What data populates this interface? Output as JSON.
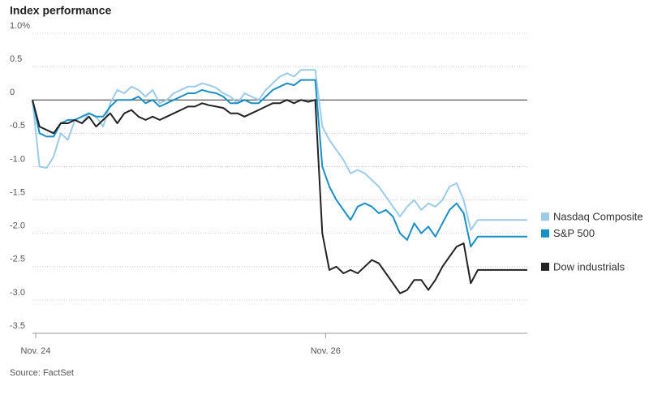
{
  "chart_data": {
    "type": "line",
    "title": "Index performance",
    "source": "Source: FactSet",
    "categories": [
      "Nov. 24",
      null,
      null,
      null,
      null,
      null,
      null,
      null,
      null,
      null,
      null,
      null,
      null,
      null,
      null,
      null,
      null,
      null,
      null,
      null,
      null,
      null,
      null,
      null,
      null,
      null,
      null,
      null,
      null,
      null,
      null,
      null,
      null,
      null,
      null,
      null,
      null,
      null,
      null,
      null,
      null,
      "Nov. 26",
      null,
      null,
      null,
      null,
      null,
      null,
      null,
      null,
      null,
      null,
      null,
      null,
      null,
      null,
      null,
      null,
      null,
      null,
      null,
      null,
      null,
      null,
      null,
      null,
      null,
      null,
      null,
      null,
      null
    ],
    "series": [
      {
        "name": "Nasdaq Composite",
        "color": "#9ccbe8",
        "values": [
          0,
          -1.0,
          -1.02,
          -0.85,
          -0.5,
          -0.6,
          -0.3,
          -0.35,
          -0.2,
          -0.25,
          -0.4,
          -0.05,
          0.15,
          0.1,
          0.2,
          0.15,
          0.05,
          0.15,
          -0.05,
          0,
          0.1,
          0.15,
          0.2,
          0.2,
          0.25,
          0.22,
          0.18,
          0.1,
          0.05,
          -0.05,
          0.1,
          0.05,
          0,
          0.15,
          0.25,
          0.35,
          0.4,
          0.35,
          0.45,
          0.45,
          0.45,
          -0.4,
          -0.6,
          -0.75,
          -0.9,
          -1.1,
          -1.05,
          -1.1,
          -1.2,
          -1.3,
          -1.45,
          -1.6,
          -1.75,
          -1.6,
          -1.5,
          -1.65,
          -1.55,
          -1.6,
          -1.5,
          -1.3,
          -1.25,
          -1.5,
          -1.95,
          -1.8,
          -1.8,
          -1.8,
          -1.8,
          -1.8,
          -1.8,
          -1.8,
          -1.8
        ]
      },
      {
        "name": "S&P 500",
        "color": "#1a8fc4",
        "values": [
          0,
          -0.5,
          -0.55,
          -0.55,
          -0.35,
          -0.3,
          -0.3,
          -0.25,
          -0.2,
          -0.25,
          -0.25,
          -0.1,
          0,
          0,
          0,
          0.05,
          -0.05,
          0,
          -0.1,
          -0.05,
          0,
          0.05,
          0.1,
          0.1,
          0.15,
          0.12,
          0.1,
          0.05,
          -0.05,
          -0.05,
          0,
          -0.05,
          -0.05,
          0.05,
          0.15,
          0.2,
          0.25,
          0.22,
          0.3,
          0.3,
          0.3,
          -1.0,
          -1.3,
          -1.5,
          -1.65,
          -1.8,
          -1.6,
          -1.55,
          -1.6,
          -1.7,
          -1.65,
          -1.75,
          -2.0,
          -2.1,
          -1.85,
          -2.0,
          -1.9,
          -2.05,
          -1.85,
          -1.65,
          -1.55,
          -1.7,
          -2.2,
          -2.05,
          -2.05,
          -2.05,
          -2.05,
          -2.05,
          -2.05,
          -2.05,
          -2.05
        ]
      },
      {
        "name": "Dow industrials",
        "color": "#222222",
        "values": [
          0,
          -0.4,
          -0.45,
          -0.5,
          -0.35,
          -0.35,
          -0.3,
          -0.35,
          -0.25,
          -0.4,
          -0.3,
          -0.2,
          -0.35,
          -0.2,
          -0.15,
          -0.25,
          -0.3,
          -0.25,
          -0.3,
          -0.25,
          -0.2,
          -0.15,
          -0.1,
          -0.1,
          -0.05,
          -0.08,
          -0.1,
          -0.12,
          -0.2,
          -0.2,
          -0.25,
          -0.2,
          -0.15,
          -0.1,
          -0.05,
          -0.05,
          0,
          -0.05,
          0,
          -0.03,
          0,
          -2.0,
          -2.55,
          -2.5,
          -2.6,
          -2.55,
          -2.6,
          -2.5,
          -2.4,
          -2.45,
          -2.6,
          -2.75,
          -2.9,
          -2.85,
          -2.7,
          -2.7,
          -2.85,
          -2.7,
          -2.5,
          -2.35,
          -2.2,
          -2.15,
          -2.75,
          -2.55,
          -2.55,
          -2.55,
          -2.55,
          -2.55,
          -2.55,
          -2.55,
          -2.55
        ]
      }
    ],
    "ylim": [
      -3.5,
      1.0
    ],
    "yticks": [
      {
        "value": 1,
        "label": "1.0%"
      },
      0.5,
      0,
      -0.5,
      {
        "value": -1,
        "label": "-1.0"
      },
      -1.5,
      {
        "value": -2,
        "label": "-2.0"
      },
      -2.5,
      {
        "value": -3,
        "label": "-3.0"
      },
      -3.5
    ],
    "grid": true
  }
}
